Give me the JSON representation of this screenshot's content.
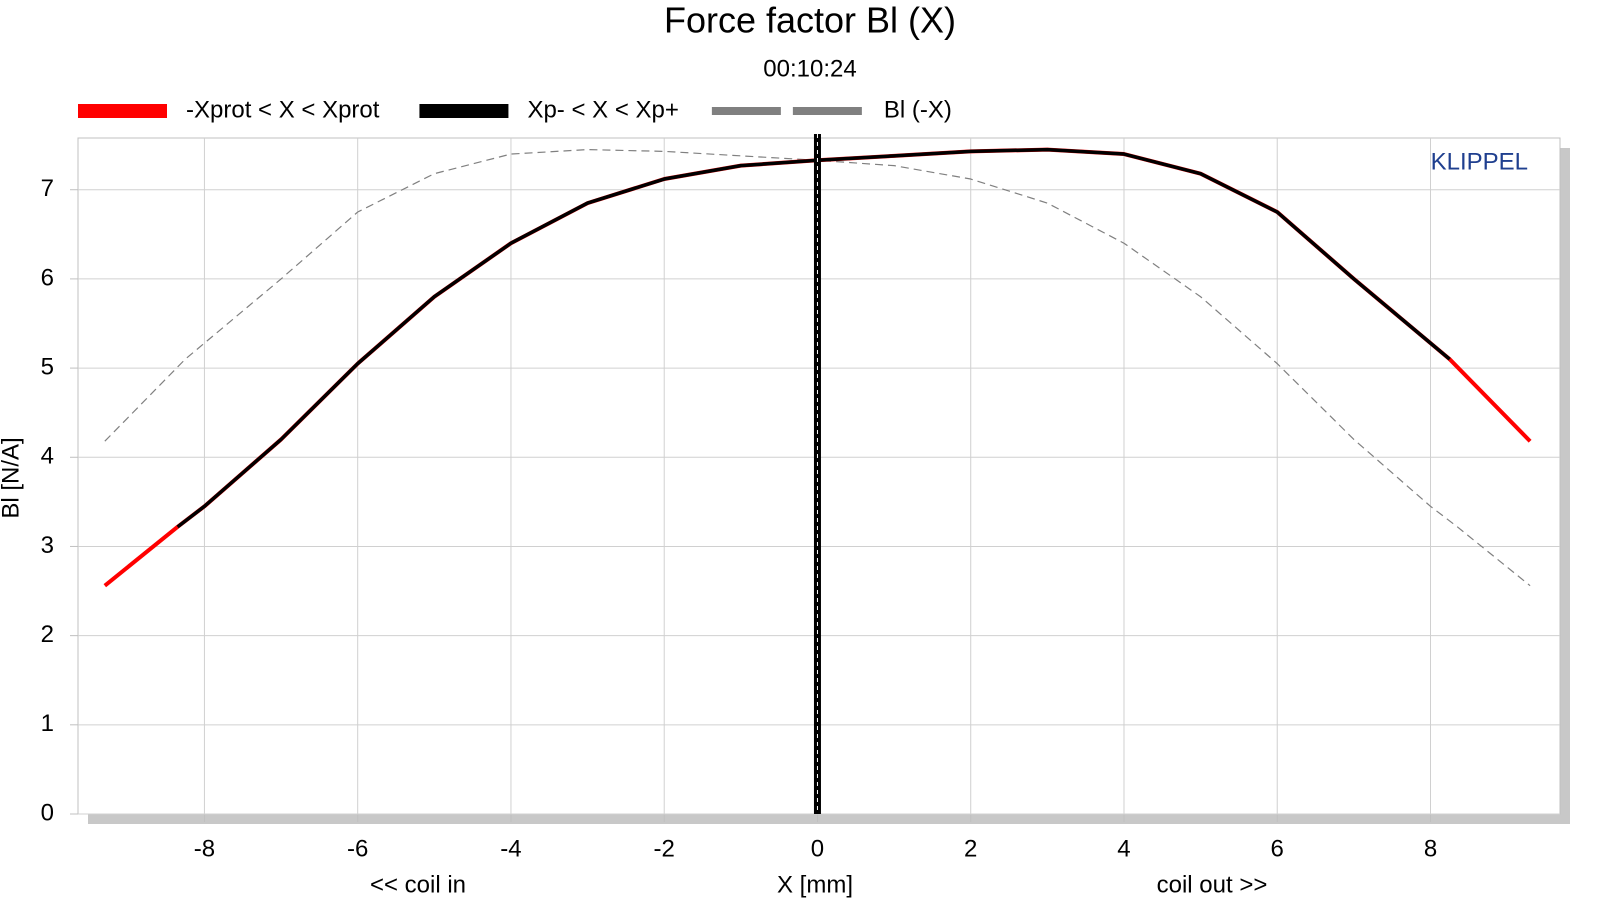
{
  "chart_data": {
    "type": "line",
    "title": "Force factor Bl (X)",
    "subtitle": "00:10:24",
    "xlabel": "X [mm]",
    "xlabel_left": "<< coil in",
    "xlabel_right": "coil out >>",
    "ylabel": "Bl [N/A]",
    "annotation": "KLIPPEL",
    "xlim": [
      -9.65,
      9.69
    ],
    "ylim": [
      0,
      7.58
    ],
    "xticks": [
      -8,
      -6,
      -4,
      -2,
      0,
      2,
      4,
      6,
      8
    ],
    "yticks": [
      0,
      1,
      2,
      3,
      4,
      5,
      6,
      7
    ],
    "grid": true,
    "vline": 0,
    "series": [
      {
        "name": "-Xprot < X < Xprot",
        "color": "#ff0000",
        "style": "solid",
        "x": [
          -9.3,
          -8.35,
          -8,
          -7,
          -6,
          -5,
          -4,
          -3,
          -2,
          -1,
          0,
          1,
          2,
          3,
          4,
          5,
          6,
          7,
          8,
          8.25,
          9.3
        ],
        "values": [
          2.56,
          3.22,
          3.45,
          4.2,
          5.05,
          5.8,
          6.4,
          6.85,
          7.12,
          7.27,
          7.33,
          7.38,
          7.43,
          7.45,
          7.4,
          7.18,
          6.75,
          6.0,
          5.28,
          5.1,
          4.18
        ]
      },
      {
        "name": "Xp- < X < Xp+",
        "color": "#000000",
        "style": "solid",
        "x": [
          -8.35,
          -8,
          -7,
          -6,
          -5,
          -4,
          -3,
          -2,
          -1,
          0,
          1,
          2,
          3,
          4,
          5,
          6,
          7,
          8,
          8.25
        ],
        "values": [
          3.22,
          3.45,
          4.2,
          5.05,
          5.8,
          6.4,
          6.85,
          7.12,
          7.27,
          7.33,
          7.38,
          7.43,
          7.45,
          7.4,
          7.18,
          6.75,
          6.0,
          5.28,
          5.1
        ]
      },
      {
        "name": "Bl (-X)",
        "color": "#808080",
        "style": "dashed",
        "x": [
          -9.3,
          -8.25,
          -8,
          -7,
          -6,
          -5,
          -4,
          -3,
          -2,
          -1,
          0,
          1,
          2,
          3,
          4,
          5,
          6,
          7,
          8,
          8.35,
          9.3
        ],
        "values": [
          4.18,
          5.1,
          5.28,
          6.0,
          6.75,
          7.18,
          7.4,
          7.45,
          7.43,
          7.38,
          7.33,
          7.27,
          7.12,
          6.85,
          6.4,
          5.8,
          5.05,
          4.2,
          3.45,
          3.22,
          2.56
        ]
      }
    ]
  }
}
